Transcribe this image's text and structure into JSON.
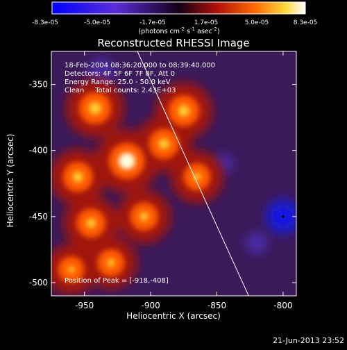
{
  "colorbar": {
    "tick_labels": [
      "-8.3e-05",
      "-5.0e-05",
      "-1.7e-05",
      "1.7e-05",
      "5.0e-05",
      "8.3e-05"
    ],
    "units_prefix": "(photons cm",
    "units_exp1": "-2",
    "units_mid": " s",
    "units_exp2": "-1",
    "units_suffix": " asec",
    "units_exp3": "-2",
    "units_close": ")"
  },
  "title": "Reconstructed RHESSI Image",
  "annotation": {
    "line1": "18-Feb-2004 08:36:20.000 to 08:39:40.000",
    "line2": "Detectors: 4F 5F 6F 7F 8F, Att 0",
    "line3": "Energy Range: 25.0 - 50.0 keV",
    "line4": "Clean     Total counts: 2.43E+03"
  },
  "peak_label": "Position of Peak = [-918,-408]",
  "axes": {
    "x_title": "Heliocentric X (arcsec)",
    "y_title": "Heliocentric Y (arcsec)",
    "x_ticks": [
      "-950",
      "-900",
      "-850",
      "-800"
    ],
    "y_ticks": [
      "-350",
      "-400",
      "-450",
      "-500"
    ]
  },
  "timestamp": "21-Jun-2013 23:52",
  "chart_data": {
    "type": "heatmap",
    "title": "Reconstructed RHESSI Image",
    "xlabel": "Heliocentric X (arcsec)",
    "ylabel": "Heliocentric Y (arcsec)",
    "xlim": [
      -975,
      -790
    ],
    "ylim": [
      -510,
      -325
    ],
    "colorscale_range": [
      -8.3e-05,
      8.3e-05
    ],
    "peak_position": [
      -918,
      -408
    ],
    "limb_line": [
      [
        -910,
        -325
      ],
      [
        -826,
        -510
      ]
    ],
    "bright_regions": [
      {
        "x": -918,
        "y": -408,
        "level": 1.0
      },
      {
        "x": -942,
        "y": -368,
        "level": 0.8
      },
      {
        "x": -875,
        "y": -370,
        "level": 0.75
      },
      {
        "x": -890,
        "y": -395,
        "level": 0.7
      },
      {
        "x": -955,
        "y": -420,
        "level": 0.7
      },
      {
        "x": -945,
        "y": -455,
        "level": 0.65
      },
      {
        "x": -905,
        "y": -450,
        "level": 0.6
      },
      {
        "x": -865,
        "y": -420,
        "level": 0.55
      },
      {
        "x": -930,
        "y": -485,
        "level": 0.55
      },
      {
        "x": -960,
        "y": -490,
        "level": 0.5
      }
    ],
    "dark_regions": [
      {
        "x": -800,
        "y": -450,
        "level": -1.0
      },
      {
        "x": -937,
        "y": -340,
        "level": -0.6
      },
      {
        "x": -820,
        "y": -470,
        "level": -0.4
      },
      {
        "x": -845,
        "y": -410,
        "level": -0.3
      }
    ]
  }
}
